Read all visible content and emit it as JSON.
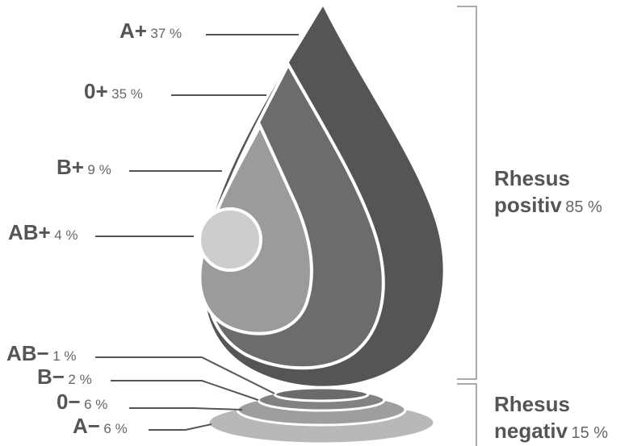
{
  "chart_data": {
    "type": "pie",
    "title": "",
    "categories": [
      "A+",
      "0+",
      "B+",
      "AB+",
      "AB−",
      "B−",
      "0−",
      "A−"
    ],
    "values": [
      37,
      35,
      9,
      4,
      1,
      2,
      6,
      6
    ],
    "value_labels": [
      "37 %",
      "35 %",
      "9 %",
      "4 %",
      "1 %",
      "2 %",
      "6 %",
      "6 %"
    ],
    "groups": [
      {
        "line1": "Rhesus",
        "line2": "positiv",
        "pct": "85 %",
        "value": 85
      },
      {
        "line1": "Rhesus",
        "line2": "negativ",
        "pct": "15 %",
        "value": 15
      }
    ],
    "colors": {
      "A+": "#555555",
      "0+": "#6c6c6c",
      "B+": "#9b9b9b",
      "AB+": "#cdcdcd",
      "negative_rings": [
        "#b8b8b8",
        "#9e9e9e",
        "#828282",
        "#6a6a6a"
      ],
      "leader_line": "#555555",
      "bracket": "#aaaaaa"
    }
  }
}
